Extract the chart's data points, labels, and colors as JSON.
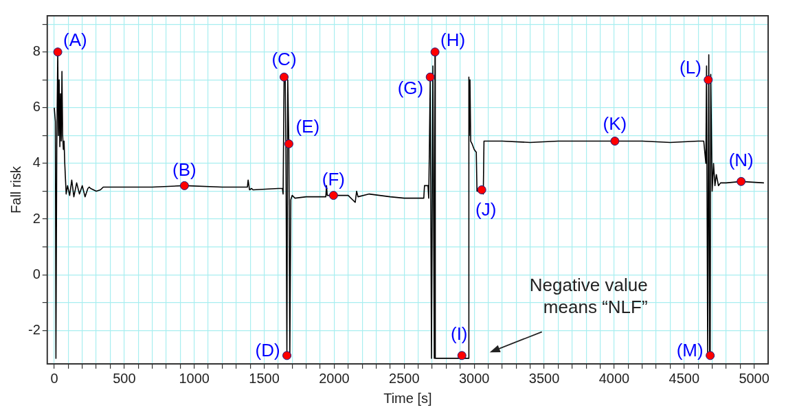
{
  "chart_data": {
    "type": "line",
    "xlabel": "Time [s]",
    "ylabel": "Fall risk",
    "xlim": [
      -50,
      5100
    ],
    "ylim": [
      -3.2,
      9.3
    ],
    "xticks": [
      0,
      {
        "value": 100,
        "label": null
      },
      {
        "value": 200,
        "label": null
      },
      {
        "value": 300,
        "label": null
      },
      {
        "value": 400,
        "label": null
      },
      500,
      {
        "value": 600,
        "label": null
      },
      {
        "value": 700,
        "label": null
      },
      {
        "value": 800,
        "label": null
      },
      {
        "value": 900,
        "label": null
      },
      1000,
      {
        "value": 1100,
        "label": null
      },
      {
        "value": 1200,
        "label": null
      },
      {
        "value": 1300,
        "label": null
      },
      {
        "value": 1400,
        "label": null
      },
      1500,
      {
        "value": 1600,
        "label": null
      },
      {
        "value": 1700,
        "label": null
      },
      {
        "value": 1800,
        "label": null
      },
      {
        "value": 1900,
        "label": null
      },
      2000,
      {
        "value": 2100,
        "label": null
      },
      {
        "value": 2200,
        "label": null
      },
      {
        "value": 2300,
        "label": null
      },
      {
        "value": 2400,
        "label": null
      },
      2500,
      {
        "value": 2600,
        "label": null
      },
      {
        "value": 2700,
        "label": null
      },
      {
        "value": 2800,
        "label": null
      },
      {
        "value": 2900,
        "label": null
      },
      3000,
      {
        "value": 3100,
        "label": null
      },
      {
        "value": 3200,
        "label": null
      },
      {
        "value": 3300,
        "label": null
      },
      {
        "value": 3400,
        "label": null
      },
      3500,
      {
        "value": 3600,
        "label": null
      },
      {
        "value": 3700,
        "label": null
      },
      {
        "value": 3800,
        "label": null
      },
      {
        "value": 3900,
        "label": null
      },
      4000,
      {
        "value": 4100,
        "label": null
      },
      {
        "value": 4200,
        "label": null
      },
      {
        "value": 4300,
        "label": null
      },
      {
        "value": 4400,
        "label": null
      },
      4500,
      {
        "value": 4600,
        "label": null
      },
      {
        "value": 4700,
        "label": null
      },
      {
        "value": 4800,
        "label": null
      },
      {
        "value": 4900,
        "label": null
      },
      5000
    ],
    "yticks": [
      -2,
      {
        "value": -1,
        "label": null
      },
      0,
      {
        "value": 1,
        "label": null
      },
      2,
      {
        "value": 3,
        "label": null
      },
      4,
      {
        "value": 5,
        "label": null
      },
      6,
      {
        "value": 7,
        "label": null
      },
      8,
      {
        "value": 9,
        "label": null
      }
    ],
    "grid": true,
    "legend": false,
    "line_style": "solid",
    "series": [
      {
        "color": "#000000",
        "marker": "none",
        "x": [
          0,
          8,
          12,
          18,
          25,
          30,
          35,
          40,
          45,
          50,
          55,
          60,
          65,
          70,
          75,
          85,
          95,
          110,
          125,
          140,
          160,
          180,
          200,
          220,
          240,
          250,
          260,
          300,
          330,
          350,
          400,
          500,
          700,
          930,
          1200,
          1380,
          1385,
          1395,
          1410,
          1420,
          1600,
          1630,
          1635,
          1642,
          1650,
          1655,
          1662,
          1668,
          1676,
          1683,
          1690,
          1700,
          1720,
          1800,
          1900,
          1940,
          1945,
          1950,
          1995,
          2100,
          2150,
          2160,
          2170,
          2250,
          2400,
          2500,
          2600,
          2640,
          2645,
          2670,
          2675,
          2680,
          2686,
          2695,
          2705,
          2715,
          2720,
          2722,
          2960,
          2962,
          2965,
          2970,
          2975,
          2985,
          3000,
          3015,
          3020,
          3054,
          3065,
          3070,
          3200,
          3400,
          3600,
          3800,
          4005,
          4200,
          4400,
          4600,
          4640,
          4655,
          4660,
          4668,
          4676,
          4682,
          4686,
          4690,
          4700,
          4710,
          4720,
          4730,
          4745,
          4760,
          4800,
          4907,
          5070
        ],
        "values": [
          6.0,
          5.5,
          -3.0,
          4.6,
          8.0,
          5.0,
          7.0,
          4.6,
          6.5,
          4.8,
          7.3,
          5.0,
          4.5,
          4.8,
          4.0,
          2.9,
          3.2,
          2.85,
          3.4,
          2.8,
          3.3,
          2.9,
          3.2,
          2.8,
          3.1,
          3.15,
          3.1,
          3.0,
          3.05,
          3.15,
          3.15,
          3.15,
          3.15,
          3.2,
          3.15,
          3.15,
          3.4,
          3.05,
          3.1,
          3.05,
          3.1,
          3.1,
          2.9,
          7.1,
          7.1,
          4.5,
          -2.9,
          7.0,
          4.7,
          -2.9,
          2.7,
          2.85,
          2.75,
          2.8,
          2.8,
          2.8,
          3.2,
          2.85,
          2.85,
          2.85,
          2.6,
          3.0,
          2.8,
          2.9,
          2.8,
          2.75,
          2.75,
          2.75,
          3.2,
          3.2,
          2.75,
          4.5,
          7.1,
          -3.0,
          7.5,
          -3.0,
          8.0,
          -3.0,
          -3.0,
          7.1,
          5.0,
          7.0,
          4.8,
          4.7,
          4.5,
          4.4,
          3.0,
          3.0,
          2.9,
          4.8,
          4.8,
          4.75,
          4.8,
          4.8,
          4.8,
          4.8,
          4.75,
          4.8,
          4.8,
          4.0,
          7.5,
          -2.9,
          7.9,
          -2.9,
          -2.9,
          7.2,
          3.0,
          4.0,
          3.2,
          3.6,
          3.2,
          3.3,
          3.3,
          3.35,
          3.3
        ]
      },
      {
        "type": "scatter",
        "color": "#ff0000",
        "marker": "circle",
        "x": [
          25,
          930,
          1642,
          1662,
          1676,
          1995,
          2686,
          2720,
          2912,
          3054,
          4005,
          4672,
          4686,
          4907
        ],
        "values": [
          8.0,
          3.2,
          7.1,
          -2.9,
          4.7,
          2.85,
          7.1,
          8.0,
          -2.9,
          3.05,
          4.8,
          7.0,
          -2.9,
          3.35
        ]
      }
    ],
    "annotations": [
      {
        "text": "(A)",
        "x": 25,
        "y": 8.0
      },
      {
        "text": "(B)",
        "x": 930,
        "y": 3.2
      },
      {
        "text": "(C)",
        "x": 1642,
        "y": 7.1
      },
      {
        "text": "(D)",
        "x": 1662,
        "y": -2.9
      },
      {
        "text": "(E)",
        "x": 1676,
        "y": 4.7
      },
      {
        "text": "(F)",
        "x": 1995,
        "y": 2.85
      },
      {
        "text": "(G)",
        "x": 2686,
        "y": 7.1
      },
      {
        "text": "(H)",
        "x": 2720,
        "y": 8.0
      },
      {
        "text": "(I)",
        "x": 2912,
        "y": -2.9
      },
      {
        "text": "(J)",
        "x": 3054,
        "y": 3.05
      },
      {
        "text": "(K)",
        "x": 4005,
        "y": 4.8
      },
      {
        "text": "(L)",
        "x": 4672,
        "y": 7.0
      },
      {
        "text": "(M)",
        "x": 4686,
        "y": -2.9
      },
      {
        "text": "(N)",
        "x": 4907,
        "y": 3.35
      },
      "Negative value\nmeans “NLF”"
    ]
  }
}
